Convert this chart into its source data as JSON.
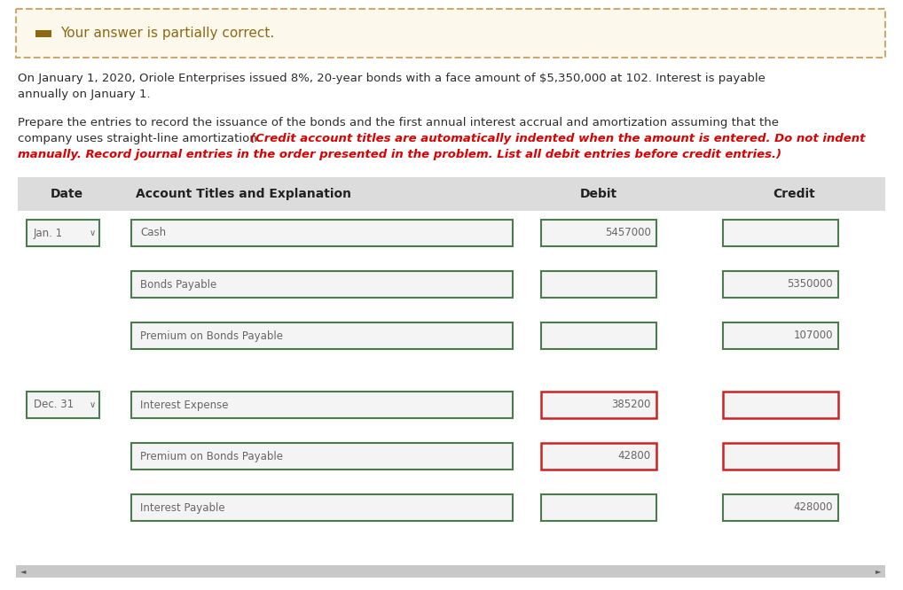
{
  "page_bg": "#ffffff",
  "banner_bg": "#fdf8ec",
  "banner_border": "#c8a96e",
  "banner_text": "Your answer is partially correct.",
  "banner_icon_color": "#8b6914",
  "problem_line1": "On January 1, 2020, Oriole Enterprises issued 8%, 20-year bonds with a face amount of $5,350,000 at 102. Interest is payable",
  "problem_line2": "annually on January 1.",
  "prepare_line1": "Prepare the entries to record the issuance of the bonds and the first annual interest accrual and amortization assuming that the",
  "prepare_line2": "company uses straight-line amortization. ",
  "italic_inline": "(Credit account titles are automatically indented when the amount is entered. Do not indent",
  "italic_line2": "manually. Record journal entries in the order presented in the problem. List all debit entries before credit entries.)",
  "header_bg": "#dcdcdc",
  "header_date_label": "Date",
  "header_account_label": "Account Titles and Explanation",
  "header_debit_label": "Debit",
  "header_credit_label": "Credit",
  "table_text_color": "#666666",
  "table_header_color": "#222222",
  "green_border": "#4a7c4e",
  "red_border": "#cc2222",
  "box_fill": "#f4f4f4",
  "dark_text_color": "#2c2c2c",
  "red_text_color": "#dd0000",
  "scrollbar_bg": "#c8c8c8",
  "arrow_color": "#555555",
  "rows": [
    {
      "date_label": "Jan. 1",
      "account": "Cash",
      "debit": "5457000",
      "credit": "",
      "debit_red": false,
      "credit_red": false
    },
    {
      "date_label": "",
      "account": "Bonds Payable",
      "debit": "",
      "credit": "5350000",
      "debit_red": false,
      "credit_red": false
    },
    {
      "date_label": "",
      "account": "Premium on Bonds Payable",
      "debit": "",
      "credit": "107000",
      "debit_red": false,
      "credit_red": false
    },
    {
      "date_label": "Dec. 31",
      "account": "Interest Expense",
      "debit": "385200",
      "credit": "",
      "debit_red": true,
      "credit_red": true
    },
    {
      "date_label": "",
      "account": "Premium on Bonds Payable",
      "debit": "42800",
      "credit": "",
      "debit_red": true,
      "credit_red": true
    },
    {
      "date_label": "",
      "account": "Interest Payable",
      "debit": "",
      "credit": "428000",
      "debit_red": false,
      "credit_red": false
    }
  ]
}
